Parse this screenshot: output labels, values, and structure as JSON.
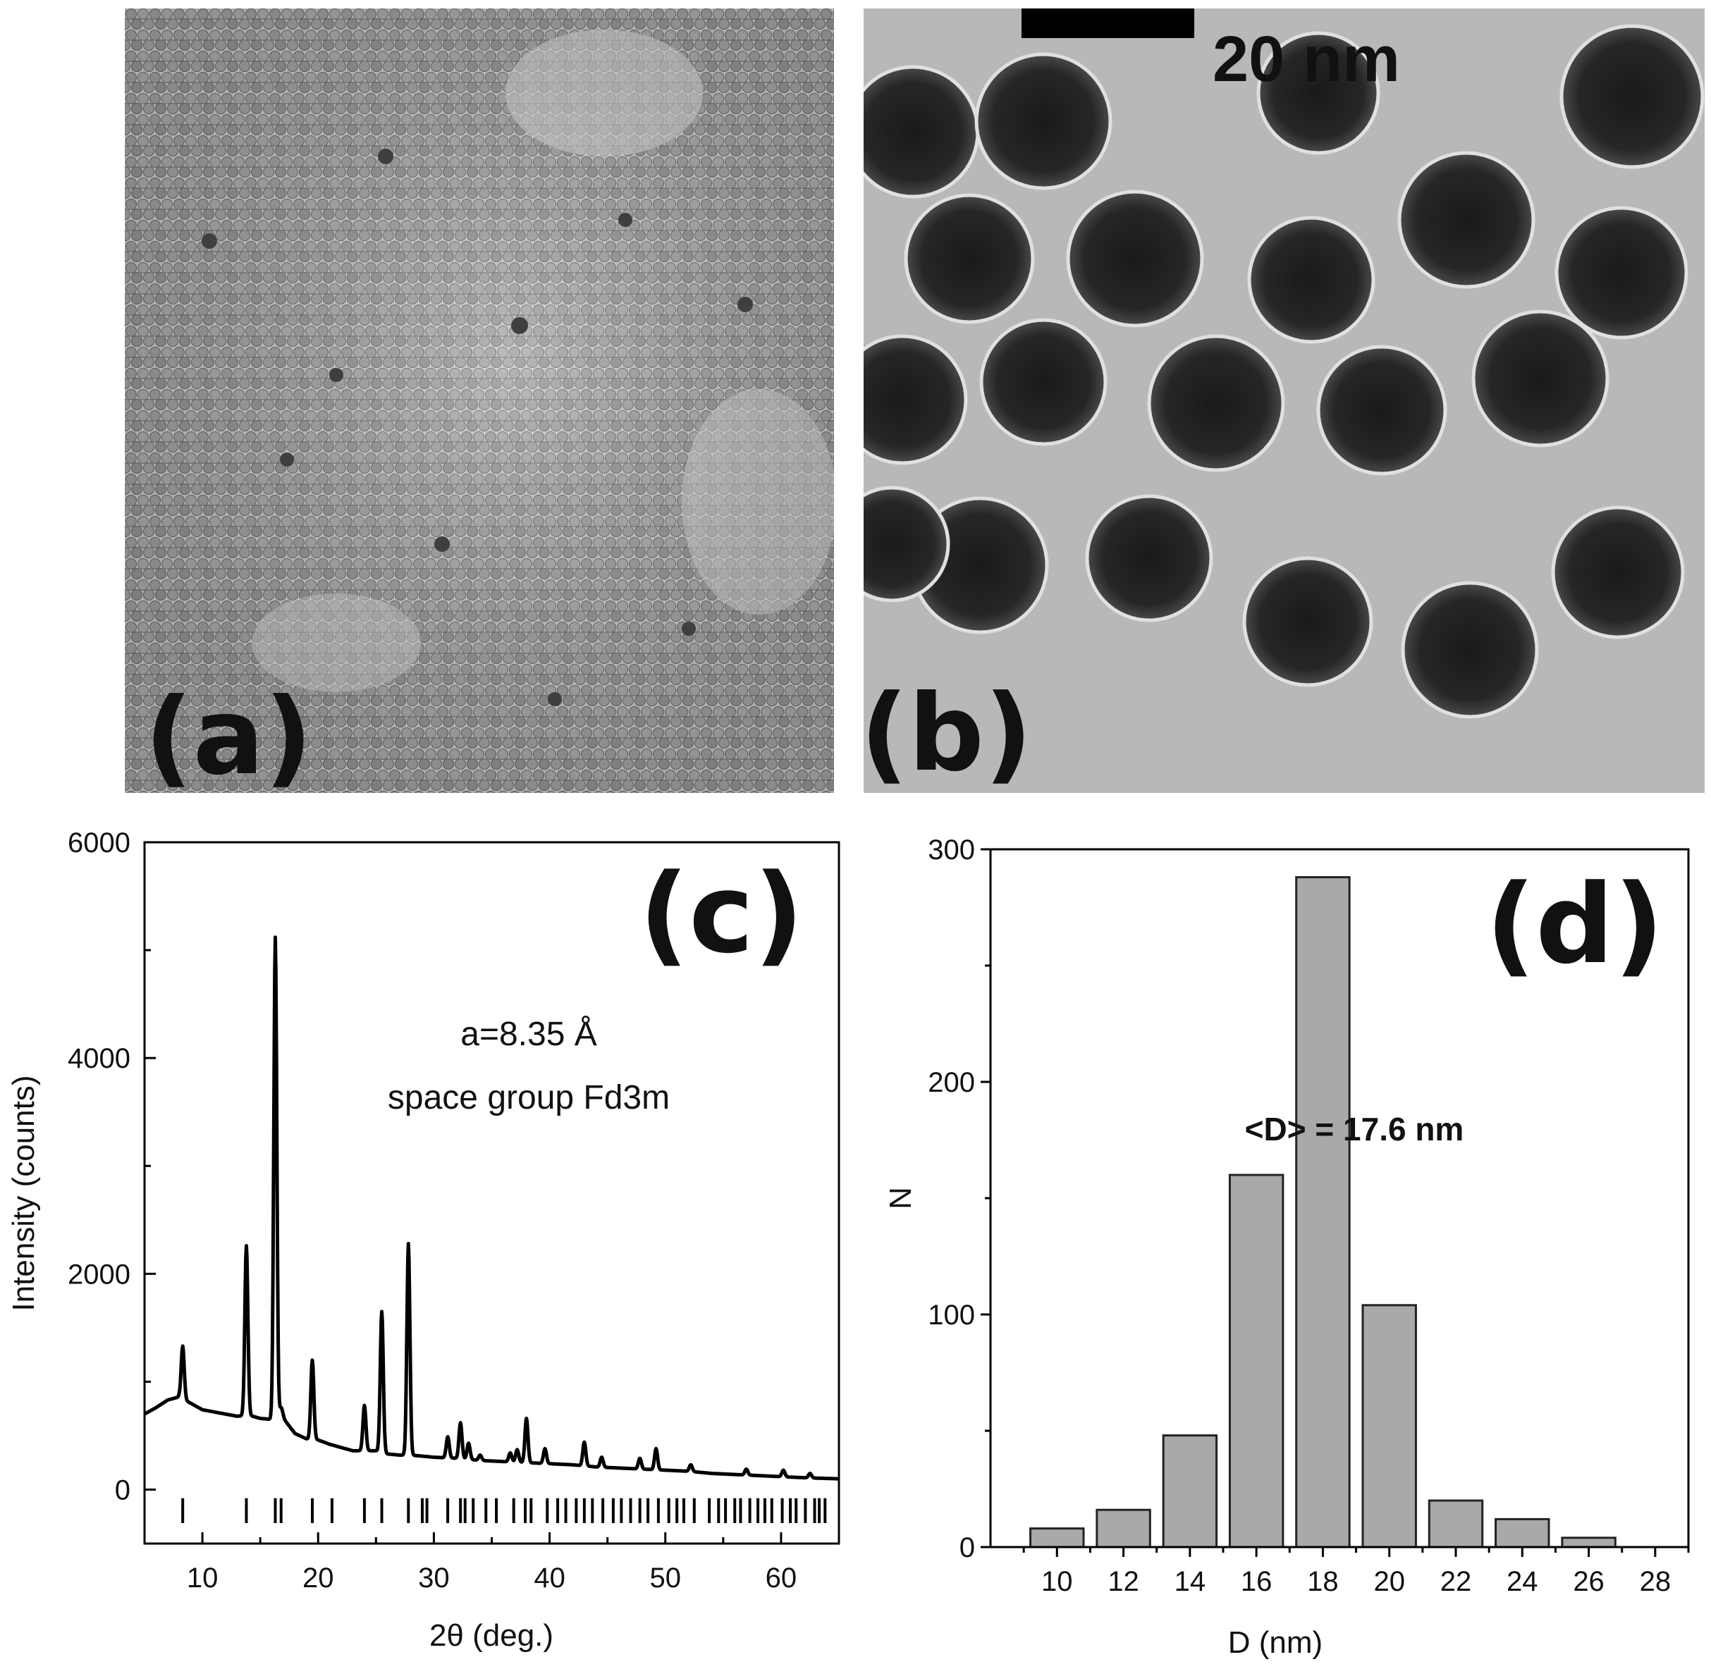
{
  "panels": {
    "a": {
      "label": "(a)"
    },
    "b": {
      "label": "(b)",
      "scale_bar": "20 nm"
    }
  },
  "charts": {
    "c": {
      "label": "(c)"
    },
    "d": {
      "label": "(d)"
    }
  },
  "chart_data": [
    {
      "id": "c",
      "type": "line",
      "title": "",
      "xlabel": "2θ (deg.)",
      "ylabel": "Intensity (counts)",
      "xlim": [
        5,
        65
      ],
      "ylim": [
        -500,
        6000
      ],
      "xticks": [
        10,
        20,
        30,
        40,
        50,
        60
      ],
      "yticks": [
        0,
        2000,
        4000,
        6000
      ],
      "grid": false,
      "annotations": [
        "a=8.35 Å",
        "space group Fd3m"
      ],
      "background": [
        [
          5,
          700
        ],
        [
          6,
          760
        ],
        [
          7,
          830
        ],
        [
          8,
          860
        ],
        [
          9,
          800
        ],
        [
          10,
          740
        ],
        [
          11,
          720
        ],
        [
          12,
          700
        ],
        [
          13,
          680
        ],
        [
          14,
          690
        ],
        [
          15,
          660
        ],
        [
          16,
          650
        ],
        [
          17,
          660
        ],
        [
          18,
          520
        ],
        [
          19,
          470
        ],
        [
          20,
          460
        ],
        [
          21,
          420
        ],
        [
          22,
          390
        ],
        [
          23,
          360
        ],
        [
          24,
          360
        ],
        [
          25,
          360
        ],
        [
          26,
          330
        ],
        [
          27,
          320
        ],
        [
          28,
          320
        ],
        [
          29,
          310
        ],
        [
          30,
          300
        ],
        [
          32,
          290
        ],
        [
          34,
          270
        ],
        [
          36,
          260
        ],
        [
          38,
          250
        ],
        [
          40,
          240
        ],
        [
          42,
          230
        ],
        [
          44,
          210
        ],
        [
          46,
          200
        ],
        [
          48,
          190
        ],
        [
          50,
          180
        ],
        [
          52,
          170
        ],
        [
          54,
          150
        ],
        [
          56,
          140
        ],
        [
          58,
          130
        ],
        [
          60,
          120
        ],
        [
          62,
          110
        ],
        [
          65,
          100
        ]
      ],
      "peaks": [
        {
          "x": 8.3,
          "y": 1330
        },
        {
          "x": 13.8,
          "y": 2260
        },
        {
          "x": 16.3,
          "y": 5120
        },
        {
          "x": 16.8,
          "y": 760
        },
        {
          "x": 19.5,
          "y": 1200
        },
        {
          "x": 24.0,
          "y": 780
        },
        {
          "x": 25.5,
          "y": 1650
        },
        {
          "x": 27.8,
          "y": 2280
        },
        {
          "x": 31.2,
          "y": 490
        },
        {
          "x": 32.3,
          "y": 620
        },
        {
          "x": 33.0,
          "y": 430
        },
        {
          "x": 34.0,
          "y": 320
        },
        {
          "x": 36.6,
          "y": 340
        },
        {
          "x": 37.2,
          "y": 370
        },
        {
          "x": 38.0,
          "y": 660
        },
        {
          "x": 39.6,
          "y": 380
        },
        {
          "x": 43.0,
          "y": 440
        },
        {
          "x": 44.5,
          "y": 300
        },
        {
          "x": 47.8,
          "y": 290
        },
        {
          "x": 49.2,
          "y": 380
        },
        {
          "x": 52.2,
          "y": 230
        },
        {
          "x": 57.0,
          "y": 190
        },
        {
          "x": 60.2,
          "y": 180
        },
        {
          "x": 62.5,
          "y": 150
        }
      ],
      "reflection_markers": [
        8.3,
        13.8,
        16.3,
        16.8,
        19.5,
        21.2,
        24.0,
        25.5,
        27.8,
        29.0,
        29.4,
        31.2,
        32.3,
        32.7,
        33.4,
        34.5,
        35.4,
        36.9,
        37.9,
        38.4,
        39.8,
        40.7,
        41.4,
        42.3,
        43.0,
        43.7,
        44.6,
        45.5,
        46.2,
        47.0,
        47.8,
        48.5,
        49.4,
        50.3,
        51.0,
        51.6,
        52.5,
        53.8,
        54.6,
        55.2,
        56.0,
        56.5,
        57.3,
        58.0,
        58.6,
        59.2,
        60.1,
        60.8,
        61.3,
        62.1,
        62.9,
        63.3,
        63.8
      ]
    },
    {
      "id": "d",
      "type": "bar",
      "title": "",
      "xlabel": "D (nm)",
      "ylabel": "N",
      "categories": [
        10,
        12,
        14,
        16,
        18,
        20,
        22,
        24,
        26
      ],
      "values": [
        8,
        16,
        48,
        160,
        288,
        104,
        20,
        12,
        4
      ],
      "xlim": [
        8,
        29
      ],
      "xticks": [
        10,
        12,
        14,
        16,
        18,
        20,
        22,
        24,
        26,
        28
      ],
      "ylim": [
        0,
        300
      ],
      "yticks": [
        0,
        100,
        200,
        300
      ],
      "grid": false,
      "bar_color": "#a9a9a9",
      "annotations": [
        "<D> = 17.6  nm"
      ]
    }
  ]
}
